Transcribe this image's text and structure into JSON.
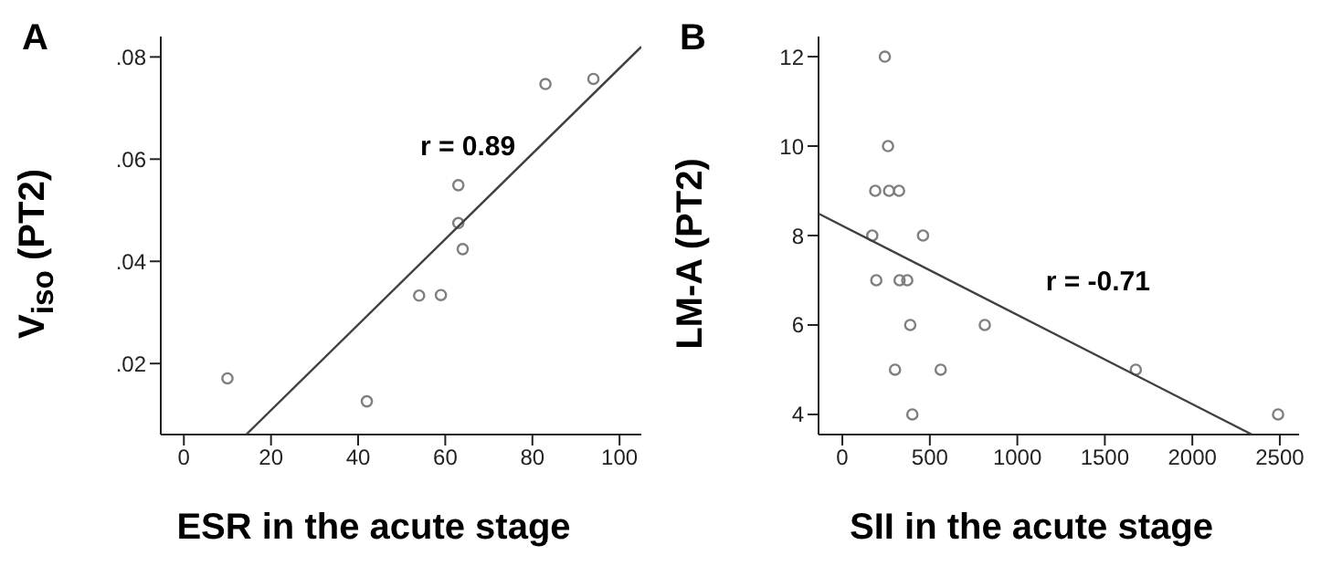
{
  "chart_data": [
    {
      "type": "scatter",
      "title": "A",
      "xlabel": "ESR in the acute stage",
      "ylabel": "V$_{iso}$ (PT2)",
      "xlim": [
        -5.3,
        105
      ],
      "ylim": [
        0.0061,
        0.084
      ],
      "xticks": [
        0,
        20,
        40,
        60,
        80,
        100
      ],
      "yticks": [
        {
          "value": 0.02,
          "label": ".02"
        },
        {
          "value": 0.04,
          "label": ".04"
        },
        {
          "value": 0.06,
          "label": ".06"
        },
        {
          "value": 0.08,
          "label": ".08"
        }
      ],
      "marker": "circle",
      "series": [
        {
          "type": "scatter",
          "color": "#7f7f7f",
          "x": [
            10,
            42,
            54,
            59,
            63,
            63,
            64,
            83,
            94
          ],
          "values": [
            0.0171,
            0.0126,
            0.0333,
            0.0334,
            0.0549,
            0.0475,
            0.0424,
            0.0747,
            0.0757
          ]
        },
        {
          "type": "line",
          "color": "#404040",
          "marker": "none",
          "line_style": "solid",
          "x": [
            14.3,
            105
          ],
          "values": [
            0.0061,
            0.082
          ]
        }
      ],
      "annotations": [
        "r = 0.89"
      ]
    },
    {
      "type": "scatter",
      "title": "B",
      "xlabel": "SII in the acute stage",
      "ylabel": "LM-A (PT2)",
      "xlim": [
        -136,
        2610
      ],
      "ylim": [
        3.55,
        12.45
      ],
      "xticks": [
        0,
        500,
        1000,
        1500,
        2000,
        2500
      ],
      "yticks": [
        4,
        6,
        8,
        10,
        12
      ],
      "marker": "circle",
      "series": [
        {
          "type": "scatter",
          "color": "#7f7f7f",
          "x": [
            243,
            261,
            188,
            267,
            324,
            171,
            461,
            194,
            327,
            371,
            388,
            814,
            301,
            562,
            1677,
            400,
            2490
          ],
          "values": [
            12,
            10,
            9,
            9,
            9,
            8,
            8,
            7,
            7,
            7,
            6,
            6,
            5,
            5,
            5,
            4,
            4
          ]
        },
        {
          "type": "line",
          "color": "#404040",
          "marker": "none",
          "line_style": "solid",
          "x": [
            -136,
            2341
          ],
          "values": [
            8.49,
            3.55
          ]
        }
      ],
      "annotations": [
        "r = -0.71"
      ]
    }
  ]
}
